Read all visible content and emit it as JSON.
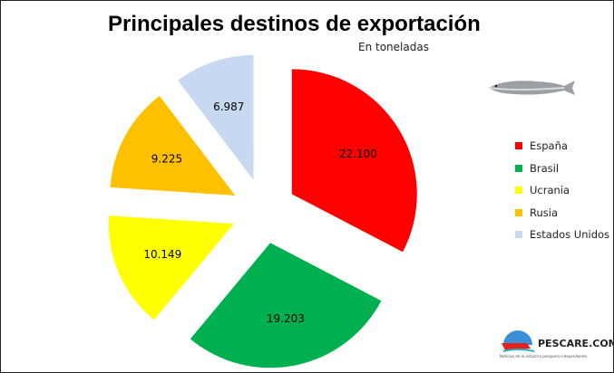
{
  "chart_data": {
    "type": "pie",
    "title": "Principales destinos de exportación",
    "subtitle": "En toneladas",
    "categories": [
      "España",
      "Brasil",
      "Ucrania",
      "Rusia",
      "Estados Unidos"
    ],
    "values": [
      22100,
      19203,
      10149,
      9225,
      6987
    ],
    "labels": [
      "22.100",
      "19.203",
      "10.149",
      "9.225",
      "6.987"
    ],
    "colors": [
      "#ff0000",
      "#00b050",
      "#ffff00",
      "#ffc000",
      "#c6d9f1"
    ],
    "exploded": true,
    "legend": "right"
  },
  "logo": {
    "name": "PESCARE.COM.AR",
    "tagline": "Noticias de la industria pesquera independiente"
  }
}
